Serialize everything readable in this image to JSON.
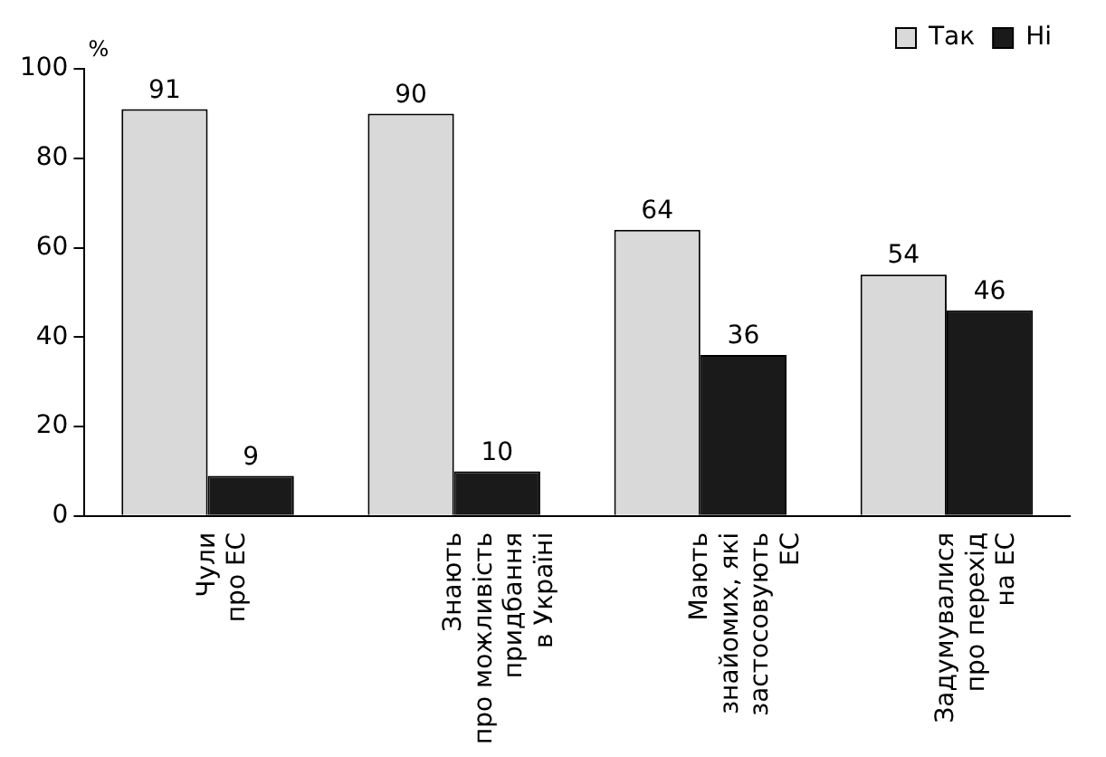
{
  "chart_data": {
    "type": "bar",
    "ylabel": "%",
    "categories": [
      "Чули\nпро ЕС",
      "Знають\nпро можливість\nпридбання\nв Україні",
      "Мають\nзнайомих, які\nзастосовують\nЕС",
      "Задумувалися\nпро перехід\nна ЕС"
    ],
    "series": [
      {
        "name": "Так",
        "color": "#d9d9d9",
        "values": [
          91,
          90,
          64,
          54
        ]
      },
      {
        "name": "Ні",
        "color": "#1a1a1a",
        "values": [
          9,
          10,
          36,
          46
        ]
      }
    ],
    "ylim": [
      0,
      100
    ],
    "yticks": [
      0,
      20,
      40,
      60,
      80,
      100
    ],
    "grid": false,
    "legend": "top right",
    "data_labels": true
  }
}
